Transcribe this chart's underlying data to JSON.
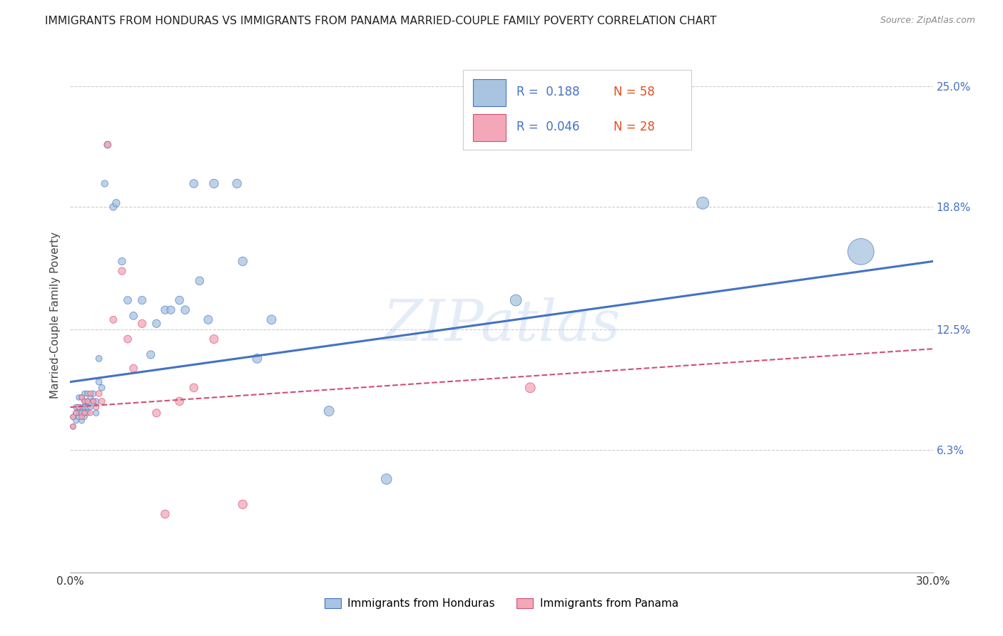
{
  "title": "IMMIGRANTS FROM HONDURAS VS IMMIGRANTS FROM PANAMA MARRIED-COUPLE FAMILY POVERTY CORRELATION CHART",
  "source": "Source: ZipAtlas.com",
  "ylabel": "Married-Couple Family Poverty",
  "xlim": [
    0.0,
    0.3
  ],
  "ylim": [
    0.0,
    0.265
  ],
  "xticks": [
    0.0,
    0.05,
    0.1,
    0.15,
    0.2,
    0.25,
    0.3
  ],
  "xtick_labels": [
    "0.0%",
    "",
    "",
    "",
    "",
    "",
    "30.0%"
  ],
  "yticks_right": [
    0.0,
    0.063,
    0.125,
    0.188,
    0.25
  ],
  "ytick_labels_right": [
    "",
    "6.3%",
    "12.5%",
    "18.8%",
    "25.0%"
  ],
  "watermark": "ZIPatlas",
  "legend_label1": "Immigrants from Honduras",
  "legend_label2": "Immigrants from Panama",
  "color_honduras": "#a8c4e0",
  "color_panama": "#f4a7b9",
  "color_line_honduras": "#4472C4",
  "color_line_panama": "#d05070",
  "R_honduras": 0.188,
  "N_honduras": 58,
  "R_panama": 0.046,
  "N_panama": 28,
  "honduras_x": [
    0.001,
    0.001,
    0.002,
    0.002,
    0.002,
    0.003,
    0.003,
    0.003,
    0.003,
    0.004,
    0.004,
    0.004,
    0.004,
    0.005,
    0.005,
    0.005,
    0.005,
    0.005,
    0.006,
    0.006,
    0.006,
    0.006,
    0.007,
    0.007,
    0.008,
    0.008,
    0.009,
    0.009,
    0.01,
    0.01,
    0.011,
    0.012,
    0.013,
    0.015,
    0.016,
    0.018,
    0.02,
    0.022,
    0.025,
    0.028,
    0.03,
    0.033,
    0.035,
    0.038,
    0.04,
    0.043,
    0.045,
    0.048,
    0.05,
    0.058,
    0.06,
    0.065,
    0.07,
    0.09,
    0.11,
    0.155,
    0.22,
    0.275
  ],
  "honduras_y": [
    0.075,
    0.08,
    0.078,
    0.082,
    0.085,
    0.08,
    0.082,
    0.085,
    0.09,
    0.078,
    0.082,
    0.085,
    0.09,
    0.08,
    0.082,
    0.085,
    0.088,
    0.092,
    0.082,
    0.085,
    0.088,
    0.092,
    0.085,
    0.09,
    0.088,
    0.092,
    0.082,
    0.088,
    0.098,
    0.11,
    0.095,
    0.2,
    0.22,
    0.188,
    0.19,
    0.16,
    0.14,
    0.132,
    0.14,
    0.112,
    0.128,
    0.135,
    0.135,
    0.14,
    0.135,
    0.2,
    0.15,
    0.13,
    0.2,
    0.2,
    0.16,
    0.11,
    0.13,
    0.083,
    0.048,
    0.14,
    0.19,
    0.165
  ],
  "honduras_size": [
    30,
    30,
    30,
    30,
    30,
    30,
    30,
    30,
    30,
    30,
    30,
    30,
    30,
    30,
    30,
    30,
    30,
    30,
    30,
    30,
    30,
    30,
    30,
    30,
    35,
    35,
    35,
    35,
    40,
    40,
    40,
    45,
    50,
    50,
    55,
    55,
    60,
    60,
    65,
    65,
    65,
    65,
    65,
    70,
    70,
    70,
    70,
    75,
    80,
    80,
    80,
    85,
    85,
    100,
    110,
    130,
    150,
    700
  ],
  "panama_x": [
    0.001,
    0.001,
    0.002,
    0.003,
    0.004,
    0.004,
    0.005,
    0.005,
    0.006,
    0.007,
    0.007,
    0.008,
    0.009,
    0.01,
    0.011,
    0.013,
    0.015,
    0.018,
    0.02,
    0.022,
    0.025,
    0.03,
    0.033,
    0.038,
    0.043,
    0.05,
    0.06,
    0.16
  ],
  "panama_y": [
    0.075,
    0.08,
    0.082,
    0.085,
    0.08,
    0.09,
    0.082,
    0.088,
    0.088,
    0.082,
    0.092,
    0.088,
    0.085,
    0.092,
    0.088,
    0.22,
    0.13,
    0.155,
    0.12,
    0.105,
    0.128,
    0.082,
    0.03,
    0.088,
    0.095,
    0.12,
    0.035,
    0.095
  ],
  "panama_size": [
    30,
    30,
    30,
    30,
    30,
    30,
    30,
    30,
    30,
    30,
    30,
    30,
    35,
    40,
    40,
    45,
    50,
    55,
    60,
    60,
    65,
    65,
    70,
    70,
    70,
    75,
    80,
    100
  ],
  "line_h_x0": 0.0,
  "line_h_y0": 0.098,
  "line_h_x1": 0.3,
  "line_h_y1": 0.16,
  "line_p_x0": 0.0,
  "line_p_y0": 0.085,
  "line_p_x1": 0.3,
  "line_p_y1": 0.115
}
